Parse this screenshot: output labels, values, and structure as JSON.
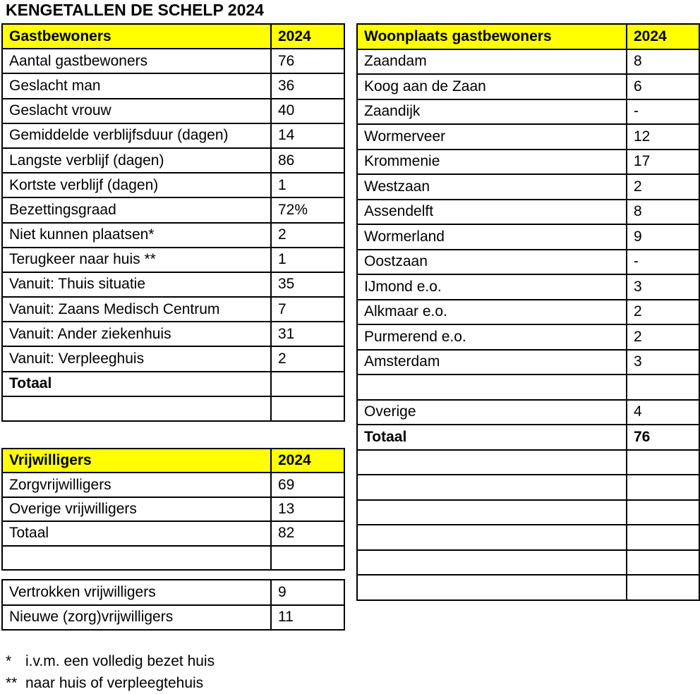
{
  "title": "KENGETALLEN DE SCHELP 2024",
  "colors": {
    "header_bg": "#FFFF00",
    "border": "#000000",
    "text": "#000000",
    "page_bg": "#FFFFFF"
  },
  "tables": {
    "gastbewoners": {
      "header": {
        "label": "Gastbewoners",
        "value": "2024"
      },
      "rows": [
        {
          "label": "Aantal gastbewoners",
          "value": "76"
        },
        {
          "label": "Geslacht man",
          "value": "36"
        },
        {
          "label": "Geslacht vrouw",
          "value": "40"
        },
        {
          "label": "Gemiddelde verblijfsduur (dagen)",
          "value": "14"
        },
        {
          "label": "Langste verblijf (dagen)",
          "value": "86"
        },
        {
          "label": "Kortste verblijf (dagen)",
          "value": "1"
        },
        {
          "label": "Bezettingsgraad",
          "value": "72%"
        },
        {
          "label": "Niet kunnen plaatsen*",
          "value": "2"
        },
        {
          "label": "Terugkeer naar huis **",
          "value": "1"
        },
        {
          "label": "Vanuit: Thuis situatie",
          "value": "35"
        },
        {
          "label": "Vanuit: Zaans Medisch Centrum",
          "value": "7"
        },
        {
          "label": "Vanuit: Ander ziekenhuis",
          "value": "31"
        },
        {
          "label": "Vanuit: Verpleeghuis",
          "value": "2"
        },
        {
          "label": "Totaal",
          "value": "",
          "bold": true
        },
        {
          "label": "",
          "value": ""
        }
      ]
    },
    "vrijwilligers": {
      "header": {
        "label": "Vrijwilligers",
        "value": "2024"
      },
      "rows": [
        {
          "label": "Zorgvrijwilligers",
          "value": "69"
        },
        {
          "label": "Overige vrijwilligers",
          "value": "13"
        },
        {
          "label": "Totaal",
          "value": "82"
        },
        {
          "label": "",
          "value": ""
        }
      ]
    },
    "vrijwilligers_mutaties": {
      "rows": [
        {
          "label": "Vertrokken vrijwilligers",
          "value": "9"
        },
        {
          "label": "Nieuwe (zorg)vrijwilligers",
          "value": "11"
        }
      ]
    },
    "woonplaats": {
      "header": {
        "label": "Woonplaats gastbewoners",
        "value": "2024"
      },
      "rows": [
        {
          "label": "Zaandam",
          "value": "8"
        },
        {
          "label": "Koog aan de Zaan",
          "value": "6"
        },
        {
          "label": "Zaandijk",
          "value": "-"
        },
        {
          "label": "Wormerveer",
          "value": "12"
        },
        {
          "label": "Krommenie",
          "value": "17"
        },
        {
          "label": "Westzaan",
          "value": "2"
        },
        {
          "label": "Assendelft",
          "value": "8"
        },
        {
          "label": "Wormerland",
          "value": "9"
        },
        {
          "label": "Oostzaan",
          "value": "-"
        },
        {
          "label": "IJmond e.o.",
          "value": "3"
        },
        {
          "label": "Alkmaar e.o.",
          "value": "2"
        },
        {
          "label": "Purmerend e.o.",
          "value": "2"
        },
        {
          "label": "Amsterdam",
          "value": "3"
        },
        {
          "label": "",
          "value": ""
        },
        {
          "label": "Overige",
          "value": "4"
        },
        {
          "label": "Totaal",
          "value": "76",
          "bold": true,
          "bold_value": true
        },
        {
          "label": "",
          "value": ""
        },
        {
          "label": "",
          "value": ""
        },
        {
          "label": "",
          "value": ""
        },
        {
          "label": "",
          "value": ""
        },
        {
          "label": "",
          "value": ""
        },
        {
          "label": "",
          "value": ""
        }
      ]
    }
  },
  "footnotes": [
    {
      "marker": "*",
      "text": "i.v.m. een volledig bezet huis"
    },
    {
      "marker": "**",
      "text": "naar huis of verpleegtehuis"
    }
  ]
}
